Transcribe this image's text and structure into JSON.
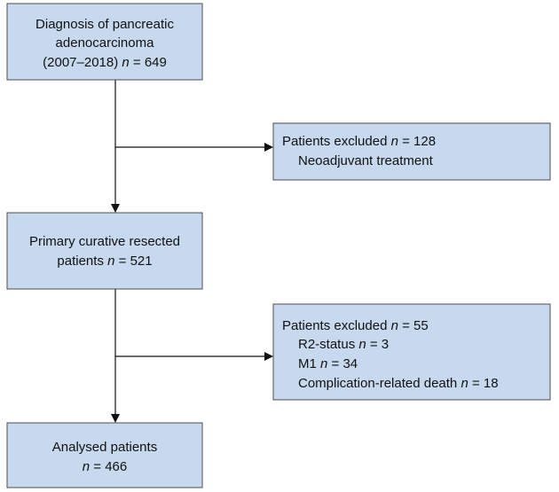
{
  "nodes": [
    {
      "lines": [
        [
          {
            "text": "Diagnosis of pancreatic"
          }
        ],
        [
          {
            "text": "adenocarcinoma"
          }
        ],
        [
          {
            "text": "(2007–2018) "
          },
          {
            "italic": "n"
          },
          {
            "text": " = 649"
          }
        ]
      ]
    },
    {
      "lines": [
        [
          {
            "text": "Patients excluded "
          },
          {
            "italic": "n"
          },
          {
            "text": " = 128"
          }
        ],
        [
          {
            "text": "Neoadjuvant treatment"
          }
        ]
      ]
    },
    {
      "lines": [
        [
          {
            "text": "Primary curative resected"
          }
        ],
        [
          {
            "text": "patients "
          },
          {
            "italic": "n"
          },
          {
            "text": " = 521"
          }
        ]
      ]
    },
    {
      "lines": [
        [
          {
            "text": "Patients excluded "
          },
          {
            "italic": "n"
          },
          {
            "text": " = 55"
          }
        ],
        [
          {
            "text": "R2-status "
          },
          {
            "italic": "n"
          },
          {
            "text": " = 3"
          }
        ],
        [
          {
            "text": "M1 "
          },
          {
            "italic": "n"
          },
          {
            "text": " = 34"
          }
        ],
        [
          {
            "text": "Complication-related death "
          },
          {
            "italic": "n"
          },
          {
            "text": " = 18"
          }
        ]
      ]
    },
    {
      "lines": [
        [
          {
            "text": "Analysed patients"
          }
        ],
        [
          {
            "italic": "n"
          },
          {
            "text": " = 466"
          }
        ]
      ]
    }
  ]
}
